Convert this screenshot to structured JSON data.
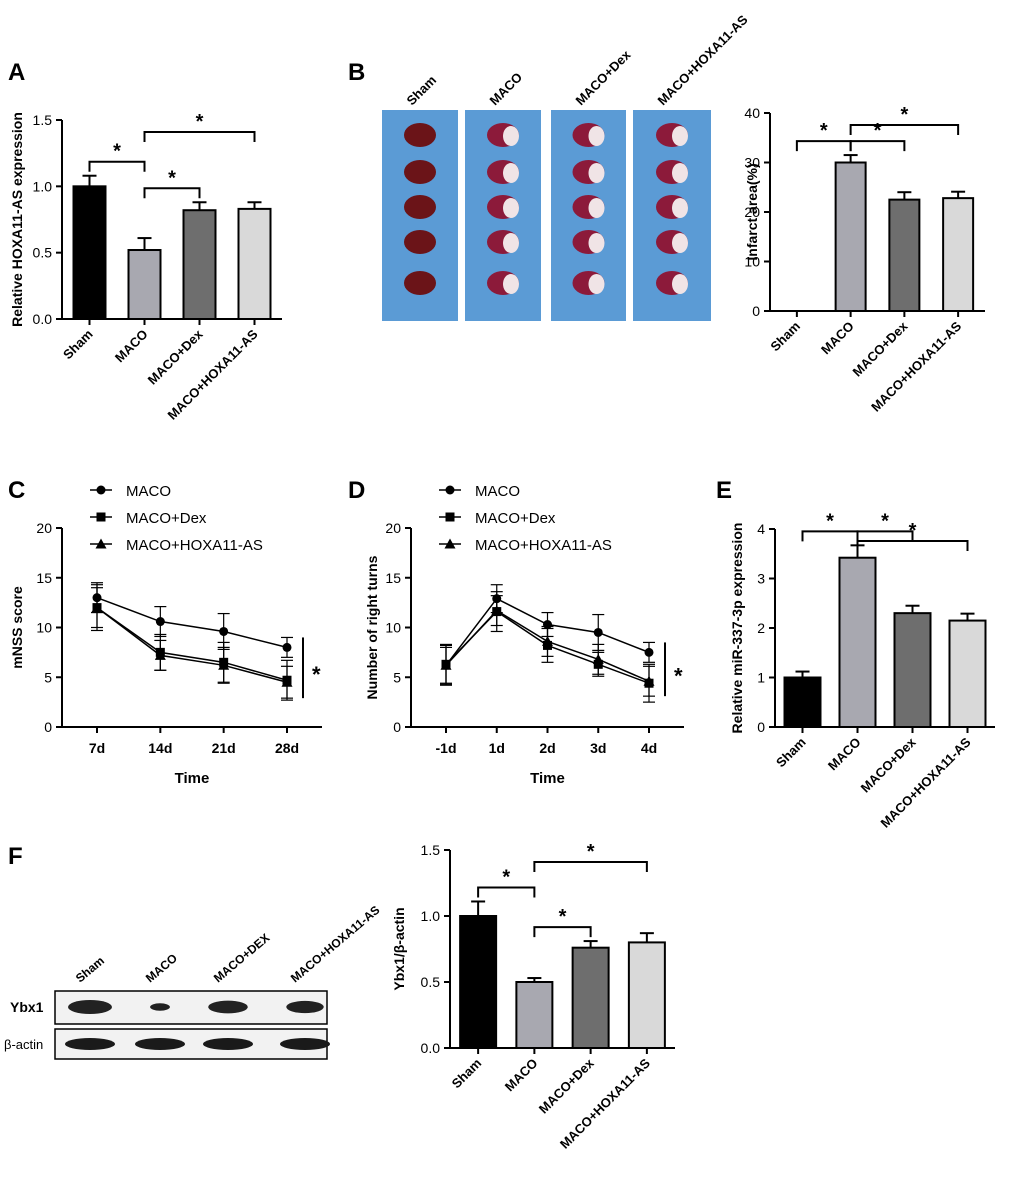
{
  "panel_labels": {
    "a": "A",
    "b": "B",
    "c": "C",
    "d": "D",
    "e": "E",
    "f": "F"
  },
  "gel_b": {
    "lanes": [
      "Sham",
      "MACO",
      "MACO+Dex",
      "MACO+HOXA11-AS"
    ]
  },
  "blot_f": {
    "lanes": [
      "Sham",
      "MACO",
      "MACO+DEX",
      "MACO+HOXA11-AS"
    ],
    "rows": [
      "Ybx1",
      "β-actin"
    ]
  },
  "colors": {
    "sham": "#000000",
    "maco": "#a8a8b0",
    "dex": "#6e6e6e",
    "hoxa": "#d9d9d9",
    "slice_bg": "#5b9bd5"
  },
  "chart_data": [
    {
      "id": "A",
      "type": "bar",
      "title": "",
      "ylabel": "Relative HOXA11-AS expression",
      "xlabel": "",
      "categories": [
        "Sham",
        "MACO",
        "MACO+Dex",
        "MACO+HOXA11-AS"
      ],
      "values": [
        1.0,
        0.52,
        0.82,
        0.83
      ],
      "errors": [
        0.08,
        0.09,
        0.06,
        0.05
      ],
      "ylim": [
        0,
        1.5
      ],
      "yticks": [
        "0.0",
        "0.5",
        "1.0",
        "1.5"
      ],
      "significance": [
        {
          "from": 0,
          "to": 1,
          "label": "*"
        },
        {
          "from": 1,
          "to": 2,
          "label": "*"
        },
        {
          "from": 1,
          "to": 3,
          "label": "*"
        }
      ]
    },
    {
      "id": "B",
      "type": "bar",
      "title": "",
      "ylabel": "Infarct area(%)",
      "xlabel": "",
      "categories": [
        "Sham",
        "MACO",
        "MACO+Dex",
        "MACO+HOXA11-AS"
      ],
      "values": [
        0,
        30,
        22.5,
        22.8
      ],
      "errors": [
        0,
        1.5,
        1.5,
        1.3
      ],
      "ylim": [
        0,
        40
      ],
      "yticks": [
        "0",
        "10",
        "20",
        "30",
        "40"
      ],
      "significance": [
        {
          "from": 0,
          "to": 1,
          "label": "*"
        },
        {
          "from": 1,
          "to": 2,
          "label": "*"
        },
        {
          "from": 1,
          "to": 3,
          "label": "*"
        }
      ]
    },
    {
      "id": "C",
      "type": "line",
      "title": "",
      "ylabel": "mNSS score",
      "xlabel": "Time",
      "categories": [
        "7d",
        "14d",
        "21d",
        "28d"
      ],
      "series": [
        {
          "name": "MACO",
          "marker": "circle",
          "values": [
            13,
            10.6,
            9.6,
            8.0
          ],
          "errors": [
            1.5,
            1.5,
            1.8,
            1.0
          ]
        },
        {
          "name": "MACO+Dex",
          "marker": "square",
          "values": [
            12,
            7.5,
            6.5,
            4.7
          ],
          "errors": [
            2.0,
            1.8,
            2.0,
            2.0
          ]
        },
        {
          "name": "MACO+HOXA11-AS",
          "marker": "triangle",
          "values": [
            12,
            7.2,
            6.2,
            4.5
          ],
          "errors": [
            2.3,
            1.5,
            1.8,
            1.6
          ]
        }
      ],
      "ylim": [
        0,
        20
      ],
      "yticks": [
        "0",
        "5",
        "10",
        "15",
        "20"
      ],
      "annotation": "*"
    },
    {
      "id": "D",
      "type": "line",
      "title": "",
      "ylabel": "Number of right turns",
      "xlabel": "Time",
      "categories": [
        "-1d",
        "1d",
        "2d",
        "3d",
        "4d"
      ],
      "series": [
        {
          "name": "MACO",
          "marker": "circle",
          "values": [
            6.2,
            12.9,
            10.3,
            9.5,
            7.5
          ],
          "errors": [
            2.0,
            1.4,
            1.2,
            1.8,
            1.0
          ]
        },
        {
          "name": "MACO+Dex",
          "marker": "square",
          "values": [
            6.3,
            11.6,
            8.2,
            6.3,
            4.4
          ],
          "errors": [
            2.0,
            2.0,
            1.7,
            1.2,
            1.9
          ]
        },
        {
          "name": "MACO+HOXA11-AS",
          "marker": "triangle",
          "values": [
            6.2,
            11.7,
            8.6,
            6.8,
            4.6
          ],
          "errors": [
            1.8,
            1.5,
            1.5,
            1.5,
            1.5
          ]
        }
      ],
      "ylim": [
        0,
        20
      ],
      "yticks": [
        "0",
        "5",
        "10",
        "15",
        "20"
      ],
      "annotation": "*"
    },
    {
      "id": "E",
      "type": "bar",
      "title": "",
      "ylabel": "Relative miR-337-3p expression",
      "xlabel": "",
      "categories": [
        "Sham",
        "MACO",
        "MACO+Dex",
        "MACO+HOXA11-AS"
      ],
      "values": [
        1.0,
        3.42,
        2.3,
        2.15
      ],
      "errors": [
        0.12,
        0.25,
        0.15,
        0.14
      ],
      "ylim": [
        0,
        4
      ],
      "yticks": [
        "0",
        "1",
        "2",
        "3",
        "4"
      ],
      "significance": [
        {
          "from": 0,
          "to": 1,
          "label": "*"
        },
        {
          "from": 1,
          "to": 2,
          "label": "*"
        },
        {
          "from": 1,
          "to": 3,
          "label": "*"
        }
      ]
    },
    {
      "id": "F",
      "type": "bar",
      "title": "",
      "ylabel": "Ybx1/β-actin",
      "xlabel": "",
      "categories": [
        "Sham",
        "MACO",
        "MACO+Dex",
        "MACO+HOXA11-AS"
      ],
      "values": [
        1.0,
        0.5,
        0.76,
        0.8
      ],
      "errors": [
        0.11,
        0.03,
        0.05,
        0.07
      ],
      "ylim": [
        0,
        1.5
      ],
      "yticks": [
        "0.0",
        "0.5",
        "1.0",
        "1.5"
      ],
      "significance": [
        {
          "from": 0,
          "to": 1,
          "label": "*"
        },
        {
          "from": 1,
          "to": 2,
          "label": "*"
        },
        {
          "from": 1,
          "to": 3,
          "label": "*"
        }
      ]
    }
  ]
}
